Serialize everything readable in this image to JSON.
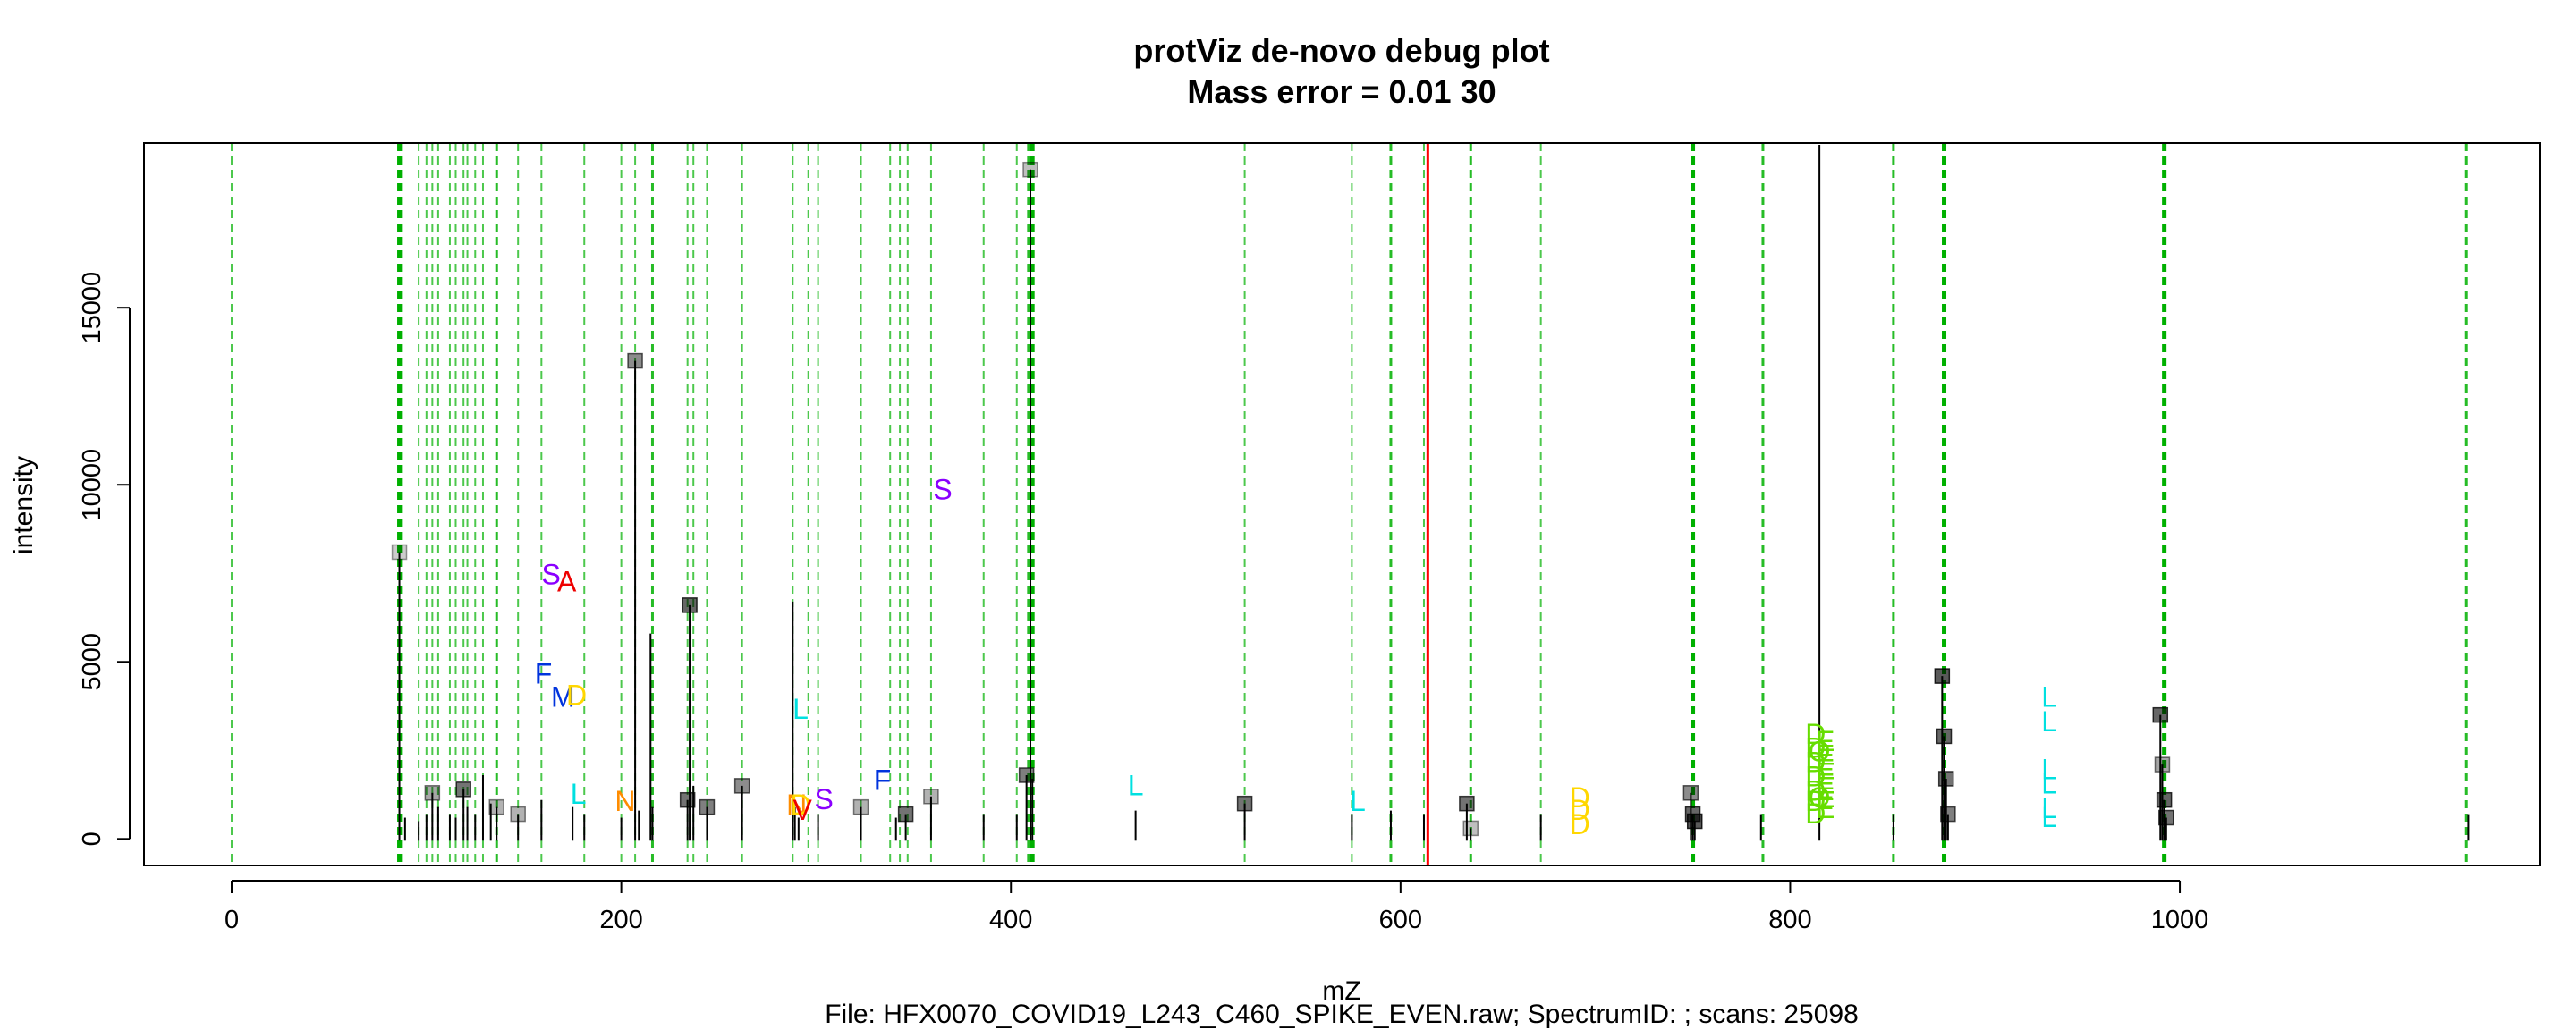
{
  "chart_data": {
    "type": "scatter",
    "title": "protViz de-novo debug plot",
    "subtitle": "Mass error = 0.01 30",
    "xlabel": "mZ",
    "ylabel": "intensity",
    "caption": "File: HFX0070_COVID19_L243_C460_SPIKE_EVEN.raw; SpectrumID: ; scans: 25098",
    "xlim": [
      -45,
      1185
    ],
    "ylim": [
      -750,
      19650
    ],
    "x_ticks": [
      "0",
      "200",
      "400",
      "600",
      "800",
      "1000"
    ],
    "x_tick_values": [
      0,
      200,
      400,
      600,
      800,
      1000
    ],
    "y_ticks": [
      "0",
      "5000",
      "10000",
      "15000"
    ],
    "y_tick_values": [
      0,
      5000,
      10000,
      15000
    ],
    "grid": false,
    "peaks": [
      {
        "x": 86.1,
        "y": 8100
      },
      {
        "x": 89,
        "y": 600
      },
      {
        "x": 96,
        "y": 500
      },
      {
        "x": 100,
        "y": 700
      },
      {
        "x": 103,
        "y": 1300
      },
      {
        "x": 106,
        "y": 900
      },
      {
        "x": 112,
        "y": 700
      },
      {
        "x": 115,
        "y": 600
      },
      {
        "x": 119,
        "y": 1400
      },
      {
        "x": 121,
        "y": 900
      },
      {
        "x": 125,
        "y": 700
      },
      {
        "x": 129,
        "y": 1800
      },
      {
        "x": 133,
        "y": 1000
      },
      {
        "x": 136,
        "y": 900
      },
      {
        "x": 147,
        "y": 700
      },
      {
        "x": 159,
        "y": 1100
      },
      {
        "x": 175,
        "y": 900
      },
      {
        "x": 181,
        "y": 700
      },
      {
        "x": 200,
        "y": 600
      },
      {
        "x": 207.1,
        "y": 13500
      },
      {
        "x": 209,
        "y": 800
      },
      {
        "x": 215,
        "y": 5800
      },
      {
        "x": 216,
        "y": 900
      },
      {
        "x": 234,
        "y": 1100
      },
      {
        "x": 235.1,
        "y": 6600
      },
      {
        "x": 237,
        "y": 1500
      },
      {
        "x": 244,
        "y": 900
      },
      {
        "x": 262,
        "y": 1500
      },
      {
        "x": 288,
        "y": 6700
      },
      {
        "x": 289.1,
        "y": 900
      },
      {
        "x": 291,
        "y": 600
      },
      {
        "x": 301,
        "y": 700
      },
      {
        "x": 323,
        "y": 900
      },
      {
        "x": 341,
        "y": 600
      },
      {
        "x": 346,
        "y": 700
      },
      {
        "x": 359,
        "y": 1200
      },
      {
        "x": 386,
        "y": 700
      },
      {
        "x": 403,
        "y": 700
      },
      {
        "x": 408,
        "y": 1800
      },
      {
        "x": 410,
        "y": 18900
      },
      {
        "x": 411,
        "y": 1700
      },
      {
        "x": 464,
        "y": 800
      },
      {
        "x": 520,
        "y": 1000
      },
      {
        "x": 575,
        "y": 700
      },
      {
        "x": 595,
        "y": 800
      },
      {
        "x": 612,
        "y": 700
      },
      {
        "x": 634,
        "y": 1000
      },
      {
        "x": 636,
        "y": 300
      },
      {
        "x": 672,
        "y": 700
      },
      {
        "x": 749,
        "y": 1300
      },
      {
        "x": 750,
        "y": 700
      },
      {
        "x": 751,
        "y": 500
      },
      {
        "x": 785,
        "y": 700
      },
      {
        "x": 815,
        "y": 19600
      },
      {
        "x": 853,
        "y": 700
      },
      {
        "x": 878,
        "y": 4600
      },
      {
        "x": 879,
        "y": 2900
      },
      {
        "x": 880,
        "y": 1700
      },
      {
        "x": 881,
        "y": 700
      },
      {
        "x": 990,
        "y": 3500
      },
      {
        "x": 991,
        "y": 2100
      },
      {
        "x": 992,
        "y": 1100
      },
      {
        "x": 993,
        "y": 600
      },
      {
        "x": 1148,
        "y": 700
      }
    ],
    "markers": [
      {
        "x": 86.1,
        "y": 8100,
        "shade": 0.2
      },
      {
        "x": 103,
        "y": 1300,
        "shade": 0.35
      },
      {
        "x": 119,
        "y": 1400,
        "shade": 0.55
      },
      {
        "x": 136,
        "y": 900,
        "shade": 0.3
      },
      {
        "x": 147,
        "y": 700,
        "shade": 0.3
      },
      {
        "x": 207.1,
        "y": 13500,
        "shade": 0.45
      },
      {
        "x": 234,
        "y": 1100,
        "shade": 0.55
      },
      {
        "x": 235.1,
        "y": 6600,
        "shade": 0.6
      },
      {
        "x": 244,
        "y": 900,
        "shade": 0.5
      },
      {
        "x": 262,
        "y": 1500,
        "shade": 0.45
      },
      {
        "x": 323,
        "y": 900,
        "shade": 0.3
      },
      {
        "x": 346,
        "y": 700,
        "shade": 0.55
      },
      {
        "x": 359,
        "y": 1200,
        "shade": 0.3
      },
      {
        "x": 408,
        "y": 1800,
        "shade": 0.5
      },
      {
        "x": 410,
        "y": 18900,
        "shade": 0.25
      },
      {
        "x": 520,
        "y": 1000,
        "shade": 0.55
      },
      {
        "x": 634,
        "y": 1000,
        "shade": 0.55
      },
      {
        "x": 636,
        "y": 300,
        "shade": 0.25
      },
      {
        "x": 749,
        "y": 1300,
        "shade": 0.45
      },
      {
        "x": 750,
        "y": 700,
        "shade": 0.6
      },
      {
        "x": 751,
        "y": 500,
        "shade": 0.65
      },
      {
        "x": 878,
        "y": 4600,
        "shade": 0.65
      },
      {
        "x": 879,
        "y": 2900,
        "shade": 0.6
      },
      {
        "x": 880,
        "y": 1700,
        "shade": 0.55
      },
      {
        "x": 881,
        "y": 700,
        "shade": 0.5
      },
      {
        "x": 990,
        "y": 3500,
        "shade": 0.6
      },
      {
        "x": 991,
        "y": 2100,
        "shade": 0.35
      },
      {
        "x": 992,
        "y": 1100,
        "shade": 0.6
      },
      {
        "x": 993,
        "y": 600,
        "shade": 0.55
      }
    ],
    "vlines": [
      {
        "x": 0,
        "weight": "light"
      },
      {
        "x": 86.1,
        "weight": "bold"
      },
      {
        "x": 87,
        "weight": "light"
      },
      {
        "x": 96,
        "weight": "light"
      },
      {
        "x": 100,
        "weight": "light"
      },
      {
        "x": 103,
        "weight": "light"
      },
      {
        "x": 106,
        "weight": "light"
      },
      {
        "x": 112,
        "weight": "light"
      },
      {
        "x": 115,
        "weight": "light"
      },
      {
        "x": 119,
        "weight": "light"
      },
      {
        "x": 121,
        "weight": "light"
      },
      {
        "x": 125,
        "weight": "light"
      },
      {
        "x": 129,
        "weight": "light"
      },
      {
        "x": 136,
        "weight": "medium"
      },
      {
        "x": 147,
        "weight": "light"
      },
      {
        "x": 159,
        "weight": "light"
      },
      {
        "x": 181,
        "weight": "light"
      },
      {
        "x": 200,
        "weight": "light"
      },
      {
        "x": 207.1,
        "weight": "light"
      },
      {
        "x": 216,
        "weight": "medium"
      },
      {
        "x": 234,
        "weight": "light"
      },
      {
        "x": 237,
        "weight": "light"
      },
      {
        "x": 244,
        "weight": "light"
      },
      {
        "x": 262,
        "weight": "light"
      },
      {
        "x": 288,
        "weight": "light"
      },
      {
        "x": 296,
        "weight": "light"
      },
      {
        "x": 301,
        "weight": "light"
      },
      {
        "x": 323,
        "weight": "light"
      },
      {
        "x": 338,
        "weight": "light"
      },
      {
        "x": 343,
        "weight": "light"
      },
      {
        "x": 347,
        "weight": "light"
      },
      {
        "x": 359,
        "weight": "light"
      },
      {
        "x": 386,
        "weight": "light"
      },
      {
        "x": 403,
        "weight": "light"
      },
      {
        "x": 409,
        "weight": "medium"
      },
      {
        "x": 411,
        "weight": "bold"
      },
      {
        "x": 520,
        "weight": "light"
      },
      {
        "x": 575,
        "weight": "light"
      },
      {
        "x": 595,
        "weight": "medium"
      },
      {
        "x": 612,
        "weight": "light"
      },
      {
        "x": 636,
        "weight": "medium"
      },
      {
        "x": 672,
        "weight": "light"
      },
      {
        "x": 750,
        "weight": "bold"
      },
      {
        "x": 786,
        "weight": "medium"
      },
      {
        "x": 853,
        "weight": "medium"
      },
      {
        "x": 879,
        "weight": "bold"
      },
      {
        "x": 992,
        "weight": "bold"
      },
      {
        "x": 1147,
        "weight": "medium"
      }
    ],
    "red_line": {
      "x": 614
    },
    "annotations": [
      {
        "text": "S",
        "x": 365,
        "y": 9800,
        "color": "#8a00ff"
      },
      {
        "text": "S",
        "x": 164,
        "y": 7400,
        "color": "#8a00ff"
      },
      {
        "text": "A",
        "x": 172,
        "y": 7200,
        "color": "#ee0000"
      },
      {
        "text": "F",
        "x": 160,
        "y": 4600,
        "color": "#0033dd"
      },
      {
        "text": "M",
        "x": 170,
        "y": 3950,
        "color": "#0033dd"
      },
      {
        "text": "D",
        "x": 177,
        "y": 4000,
        "color": "#ffd700"
      },
      {
        "text": "L",
        "x": 292,
        "y": 3600,
        "color": "#00e0e0"
      },
      {
        "text": "L",
        "x": 178,
        "y": 1200,
        "color": "#00e0e0"
      },
      {
        "text": "N",
        "x": 202,
        "y": 1000,
        "color": "#ff8c00"
      },
      {
        "text": "N",
        "x": 290,
        "y": 900,
        "color": "#ff8c00"
      },
      {
        "text": "D",
        "x": 292,
        "y": 900,
        "color": "#ffd700"
      },
      {
        "text": "V",
        "x": 293,
        "y": 750,
        "color": "#ee0000"
      },
      {
        "text": "S",
        "x": 304,
        "y": 1050,
        "color": "#8a00ff"
      },
      {
        "text": "F",
        "x": 334,
        "y": 1600,
        "color": "#0033dd"
      },
      {
        "text": "L",
        "x": 464,
        "y": 1450,
        "color": "#00e0e0"
      },
      {
        "text": "L",
        "x": 578,
        "y": 1000,
        "color": "#00e0e0"
      },
      {
        "text": "D",
        "x": 692,
        "y": 1100,
        "color": "#ffd700"
      },
      {
        "text": "D",
        "x": 692,
        "y": 750,
        "color": "#ffd700"
      },
      {
        "text": "D",
        "x": 692,
        "y": 350,
        "color": "#ffd700"
      },
      {
        "text": "D",
        "x": 813,
        "y": 2900,
        "color": "#66dd00"
      },
      {
        "text": "D",
        "x": 813,
        "y": 2500,
        "color": "#66dd00"
      },
      {
        "text": "D",
        "x": 813,
        "y": 2100,
        "color": "#66dd00"
      },
      {
        "text": "D",
        "x": 813,
        "y": 1700,
        "color": "#66dd00"
      },
      {
        "text": "D",
        "x": 813,
        "y": 1300,
        "color": "#66dd00"
      },
      {
        "text": "D",
        "x": 813,
        "y": 1000,
        "color": "#66dd00"
      },
      {
        "text": "D",
        "x": 813,
        "y": 650,
        "color": "#66dd00"
      },
      {
        "text": "E",
        "x": 818,
        "y": 2700,
        "color": "#66dd00"
      },
      {
        "text": "E",
        "x": 818,
        "y": 2300,
        "color": "#66dd00"
      },
      {
        "text": "E",
        "x": 818,
        "y": 1900,
        "color": "#66dd00"
      },
      {
        "text": "E",
        "x": 818,
        "y": 1500,
        "color": "#66dd00"
      },
      {
        "text": "E",
        "x": 818,
        "y": 1100,
        "color": "#66dd00"
      },
      {
        "text": "E",
        "x": 818,
        "y": 800,
        "color": "#66dd00"
      },
      {
        "text": "O",
        "x": 815,
        "y": 2400,
        "color": "#66dd00"
      },
      {
        "text": "O",
        "x": 815,
        "y": 1100,
        "color": "#66dd00"
      },
      {
        "text": "L",
        "x": 933,
        "y": 3950,
        "color": "#00e0e0"
      },
      {
        "text": "L",
        "x": 933,
        "y": 3250,
        "color": "#00e0e0"
      },
      {
        "text": "L",
        "x": 933,
        "y": 1900,
        "color": "#00e0e0"
      },
      {
        "text": "L",
        "x": 933,
        "y": 1500,
        "color": "#00e0e0"
      },
      {
        "text": "L",
        "x": 933,
        "y": 800,
        "color": "#00e0e0"
      },
      {
        "text": "L",
        "x": 933,
        "y": 550,
        "color": "#00e0e0"
      }
    ],
    "colors": {
      "peak": "#000000",
      "marker_fill": "#000000",
      "vline": "#00b000",
      "red_line": "#ff0000",
      "axis": "#000000"
    }
  }
}
